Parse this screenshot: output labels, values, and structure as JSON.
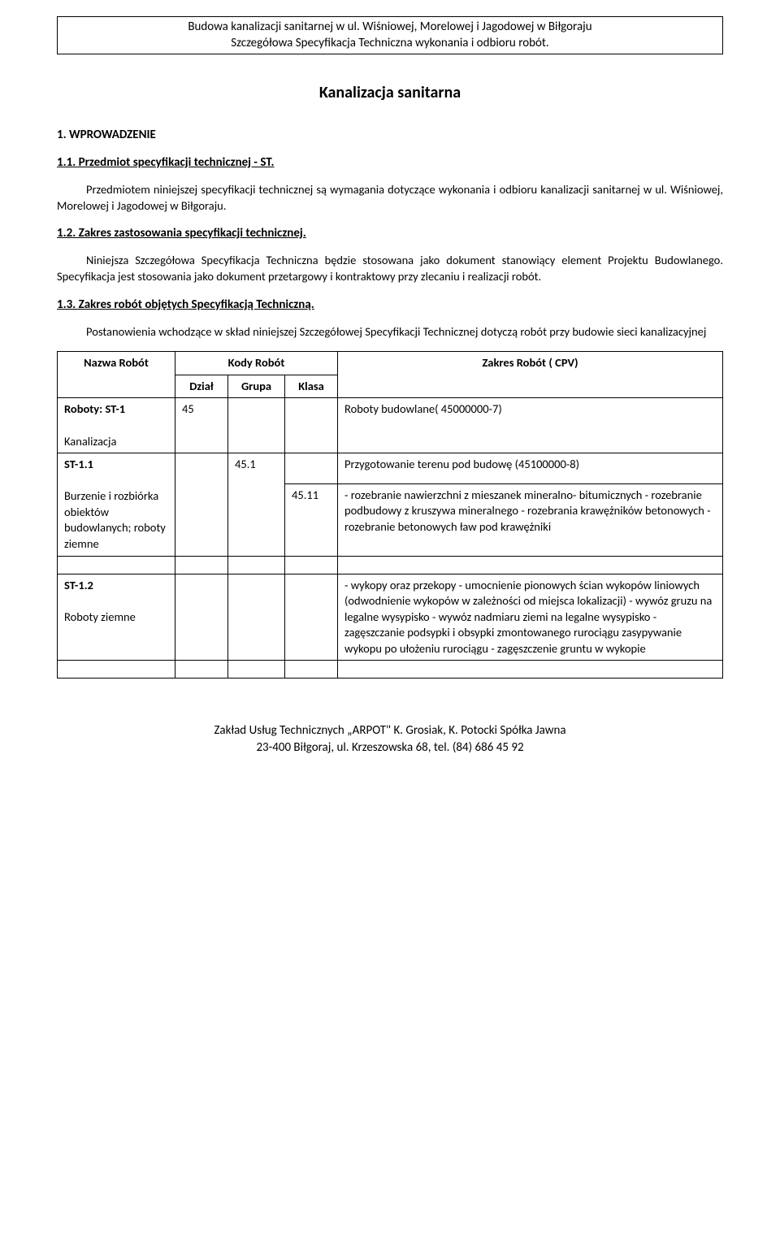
{
  "header": {
    "line1": "Budowa kanalizacji sanitarnej w ul. Wiśniowej, Morelowej i Jagodowej w Biłgoraju",
    "line2": "Szczegółowa Specyfikacja Techniczna wykonania i odbioru robót."
  },
  "title": "Kanalizacja sanitarna",
  "h1": "1. WPROWADZENIE",
  "h11": "1.1. Przedmiot specyfikacji technicznej - ST.",
  "p11": "Przedmiotem niniejszej specyfikacji technicznej są wymagania dotyczące wykonania i odbioru kanalizacji sanitarnej w ul. Wiśniowej, Morelowej i Jagodowej w Biłgoraju.",
  "h12": "1.2. Zakres zastosowania specyfikacji technicznej.",
  "p12": "Niniejsza Szczegółowa Specyfikacja Techniczna będzie stosowana jako dokument stanowiący element Projektu Budowlanego. Specyfikacja jest stosowania jako dokument przetargowy i kontraktowy przy zlecaniu i realizacji robót.",
  "h13": "1.3. Zakres robót objętych Specyfikacją Techniczną.",
  "p13": "Postanowienia wchodzące w skład niniejszej Szczegółowej Specyfikacji Technicznej dotyczą robót przy budowie sieci kanalizacyjnej",
  "table": {
    "headers": {
      "name": "Nazwa Robót",
      "codes": "Kody Robót",
      "dzial": "Dział",
      "grupa": "Grupa",
      "klasa": "Klasa",
      "zakres": "Zakres Robót ( CPV)"
    },
    "r1": {
      "name": "Roboty: ST-1\n\nKanalizacja",
      "dzial": "45",
      "zakres": "Roboty budowlane( 45000000-7)"
    },
    "r2": {
      "name": "ST-1.1\n\nBurzenie i rozbiórka obiektów budowlanych; roboty ziemne",
      "grupa": "45.1",
      "zakres_a": "Przygotowanie terenu pod budowę (45100000-8)",
      "klasa": "45.11",
      "zakres_b": "-    rozebranie nawierzchni z mieszanek mineralno- bitumicznych -    rozebranie podbudowy z kruszywa mineralnego - rozebrania krawężników betonowych - rozebranie betonowych ław pod krawężniki"
    },
    "r3": {
      "name": "ST-1.2\n\nRoboty ziemne",
      "zakres": "-    wykopy oraz przekopy -    umocnienie pionowych ścian wykopów liniowych (odwodnienie wykopów w zależności od miejsca lokalizacji) -    wywóz gruzu na legalne wysypisko -    wywóz nadmiaru ziemi na legalne wysypisko -    zagęszczanie podsypki i obsypki zmontowanego rurociągu zasypywanie wykopu po ułożeniu rurociągu - zagęszczenie gruntu w wykopie"
    }
  },
  "footer": {
    "line1": "Zakład Usług Technicznych „ARPOT\" K. Grosiak, K. Potocki Spółka Jawna",
    "line2": "23-400 Biłgoraj, ul. Krzeszowska 68, tel. (84) 686 45 92"
  }
}
